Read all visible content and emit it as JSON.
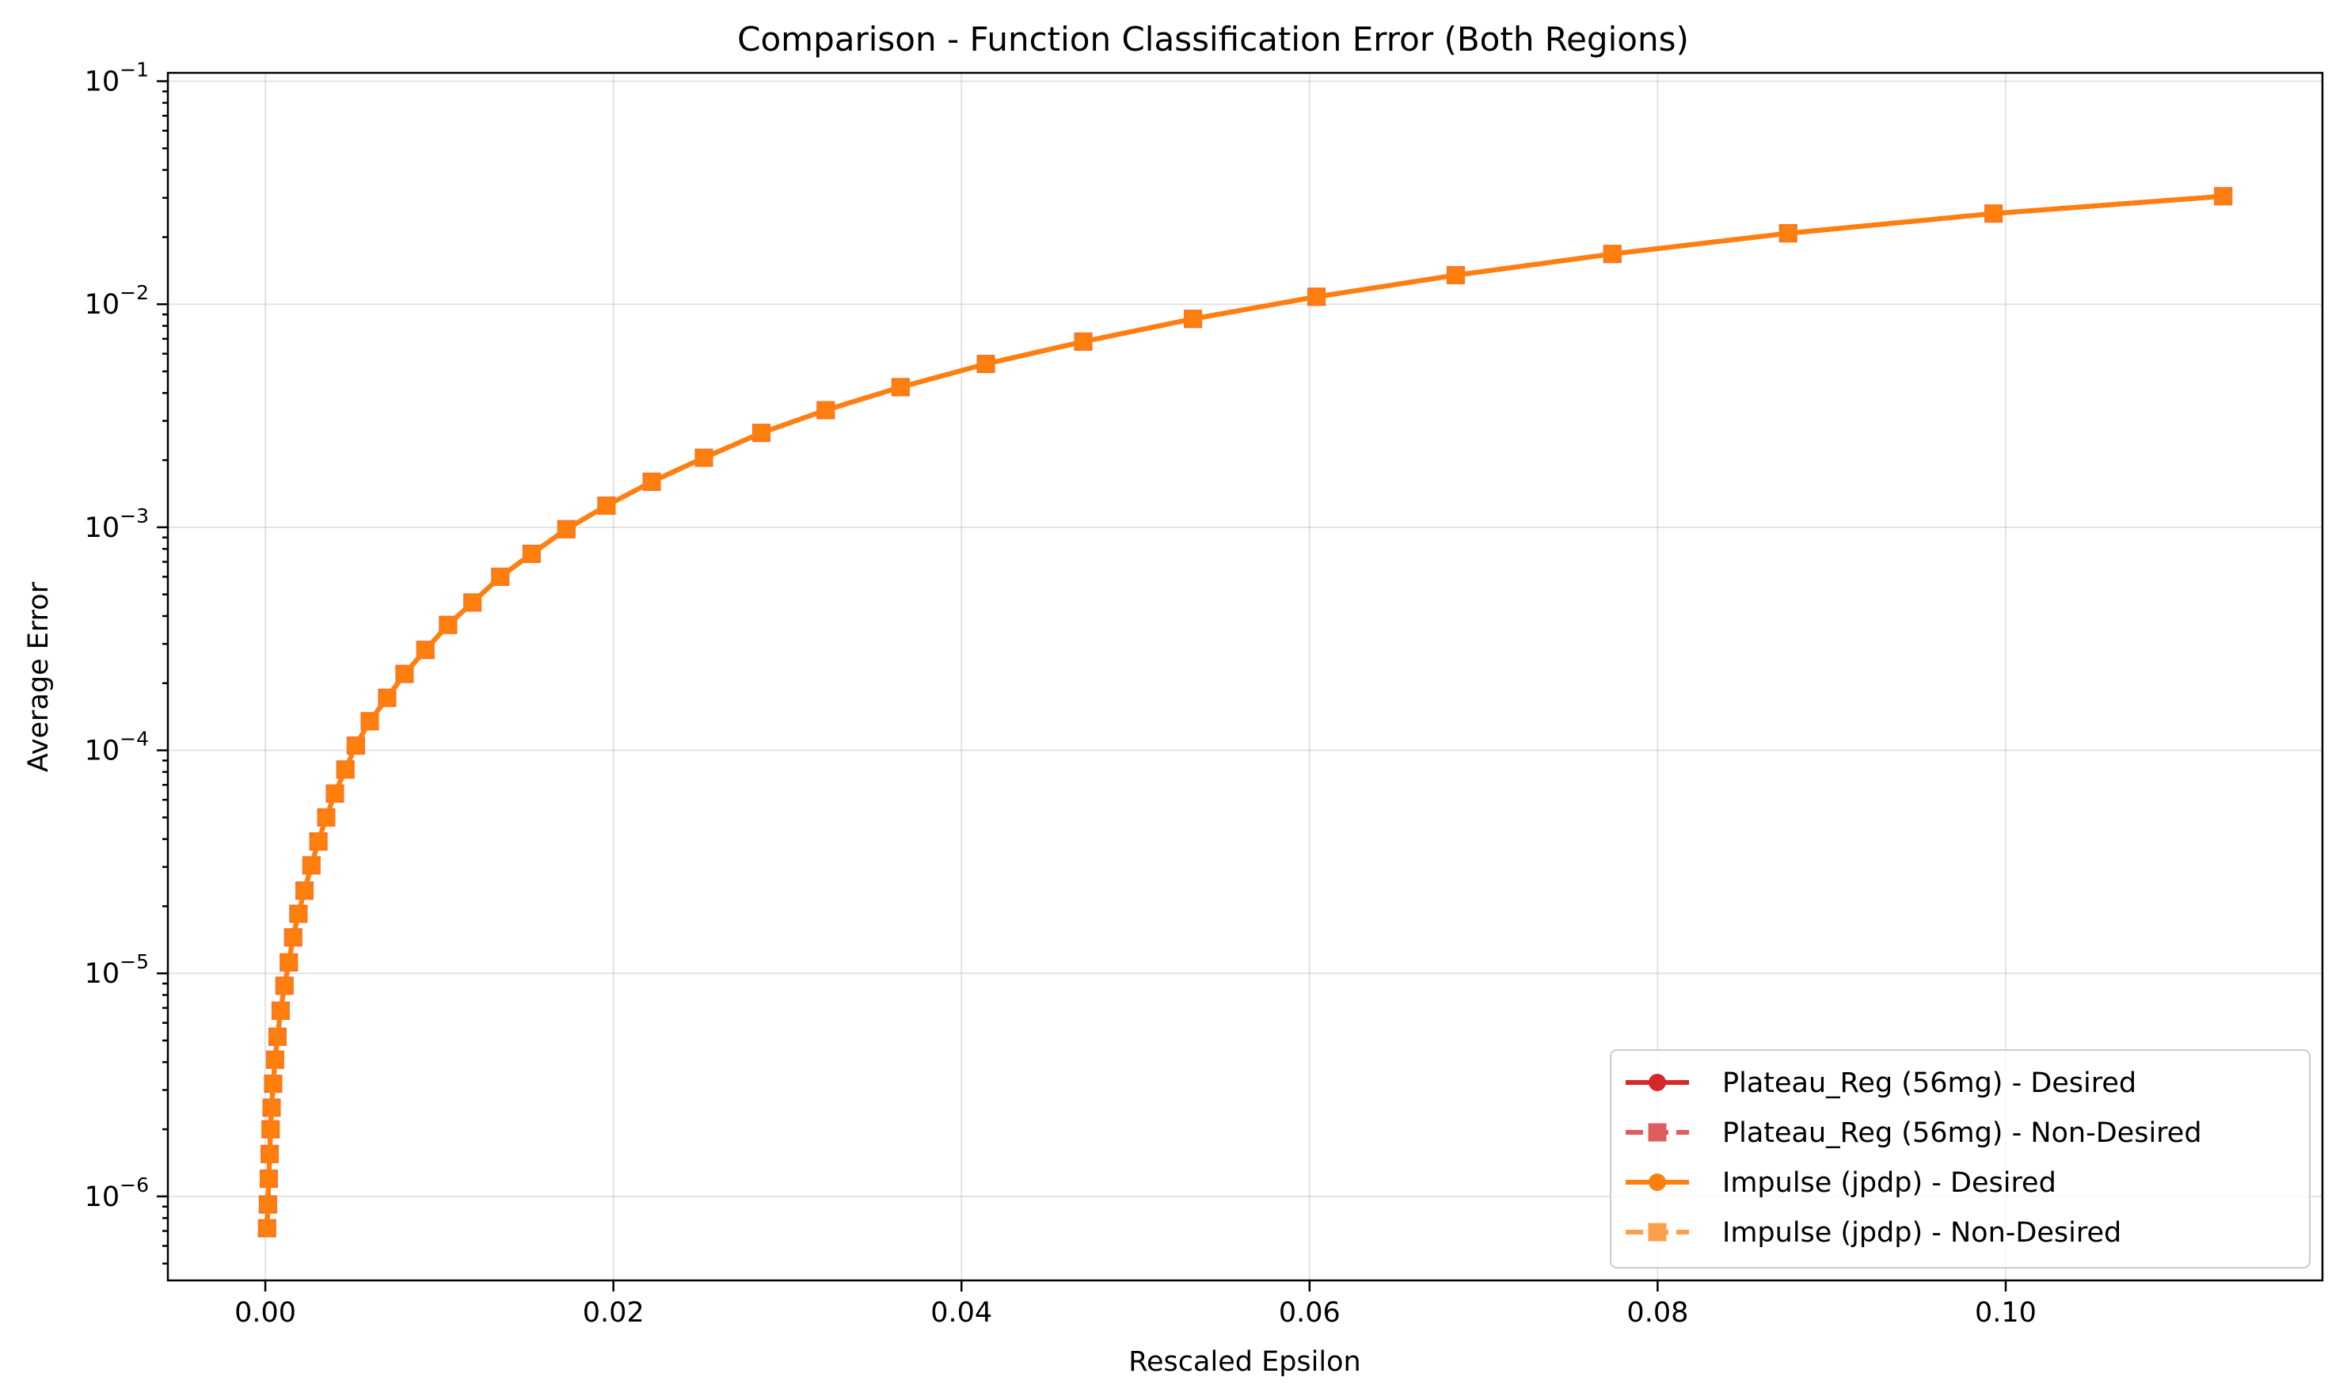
{
  "chart_data": {
    "type": "line",
    "title": "Comparison - Function Classification Error (Both Regions)",
    "xlabel": "Rescaled Epsilon",
    "ylabel": "Average Error",
    "xlim": [
      -0.0056,
      0.1182
    ],
    "ylim": [
      4.2e-07,
      0.109
    ],
    "yscale": "log",
    "grid": true,
    "legend_position": "lower-right",
    "x_ticks": [
      0.0,
      0.02,
      0.04,
      0.06,
      0.08,
      0.1
    ],
    "x_tick_labels": [
      "0.00",
      "0.02",
      "0.04",
      "0.06",
      "0.08",
      "0.10"
    ],
    "y_ticks": [
      {
        "value": 1e-06,
        "base": "10",
        "exp": "−6"
      },
      {
        "value": 1e-05,
        "base": "10",
        "exp": "−5"
      },
      {
        "value": 0.0001,
        "base": "10",
        "exp": "−4"
      },
      {
        "value": 0.001,
        "base": "10",
        "exp": "−3"
      },
      {
        "value": 0.01,
        "base": "10",
        "exp": "−2"
      },
      {
        "value": 0.1,
        "base": "10",
        "exp": "−1"
      }
    ],
    "x": [
      0.0001,
      0.00015,
      0.0002,
      0.00025,
      0.0003,
      0.00036,
      0.00045,
      0.00056,
      0.0007,
      0.00088,
      0.0011,
      0.00135,
      0.0016,
      0.0019,
      0.00225,
      0.00265,
      0.00305,
      0.0035,
      0.004,
      0.0046,
      0.0052,
      0.006,
      0.007,
      0.008,
      0.0092,
      0.0105,
      0.0119,
      0.0135,
      0.0153,
      0.0173,
      0.0196,
      0.0222,
      0.0252,
      0.0285,
      0.0322,
      0.0365,
      0.0414,
      0.047,
      0.0533,
      0.0604,
      0.0684,
      0.0774,
      0.0875,
      0.0993,
      0.1125
    ],
    "y": [
      7.2e-07,
      9.2e-07,
      1.2e-06,
      1.55e-06,
      2e-06,
      2.5e-06,
      3.2e-06,
      4.1e-06,
      5.2e-06,
      6.8e-06,
      8.8e-06,
      1.12e-05,
      1.45e-05,
      1.85e-05,
      2.35e-05,
      3.05e-05,
      3.9e-05,
      5e-05,
      6.4e-05,
      8.2e-05,
      0.000105,
      0.000135,
      0.000172,
      0.00022,
      0.000282,
      0.000365,
      0.00046,
      0.0006,
      0.00076,
      0.00098,
      0.00125,
      0.0016,
      0.00205,
      0.00265,
      0.00335,
      0.00425,
      0.0054,
      0.0068,
      0.0086,
      0.0108,
      0.0135,
      0.0168,
      0.0208,
      0.0255,
      0.0305
    ],
    "series": [
      {
        "name": "Plateau_Reg (56mg) - Desired",
        "color": "#d62728",
        "marker": "circle",
        "linestyle": "solid",
        "opacity": 1.0,
        "same_as_x_y": true
      },
      {
        "name": "Plateau_Reg (56mg) - Non-Desired",
        "color": "#d62728",
        "marker": "square",
        "linestyle": "dashed",
        "opacity": 0.75,
        "same_as_x_y": true
      },
      {
        "name": "Impulse (jpdp) - Desired",
        "color": "#ff7f0e",
        "marker": "circle",
        "linestyle": "solid",
        "opacity": 1.0,
        "same_as_x_y": true
      },
      {
        "name": "Impulse (jpdp) - Non-Desired",
        "color": "#ff7f0e",
        "marker": "square",
        "linestyle": "dashed",
        "opacity": 0.75,
        "same_as_x_y": true
      }
    ]
  }
}
